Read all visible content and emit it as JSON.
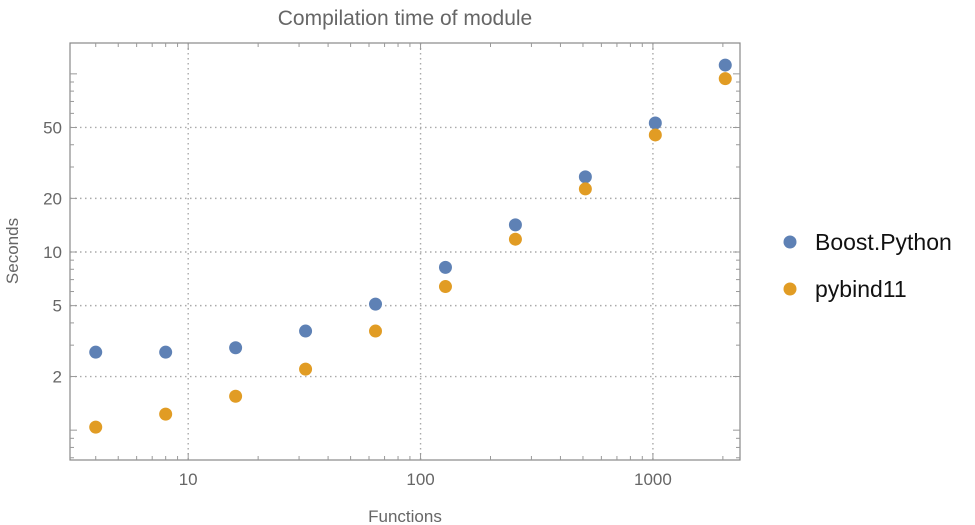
{
  "chart_data": {
    "type": "scatter",
    "title": "Compilation time of module",
    "xlabel": "Functions",
    "ylabel": "Seconds",
    "xscale": "log",
    "yscale": "log",
    "xlim": [
      3.1,
      2370
    ],
    "ylim": [
      0.68,
      149
    ],
    "x_ticks": [
      10,
      100,
      1000
    ],
    "y_ticks": [
      2,
      5,
      10,
      20,
      50
    ],
    "grid": true,
    "legend_position": "right",
    "x": [
      4,
      8,
      16,
      32,
      64,
      128,
      256,
      512,
      1024,
      2048
    ],
    "series": [
      {
        "name": "Boost.Python",
        "color": "#5e81b5",
        "values": [
          2.74,
          2.74,
          2.9,
          3.6,
          5.1,
          8.2,
          14.2,
          26.4,
          53,
          112
        ]
      },
      {
        "name": "pybind11",
        "color": "#e19c24",
        "values": [
          1.04,
          1.23,
          1.55,
          2.2,
          3.6,
          6.4,
          11.8,
          22.6,
          45.4,
          94
        ]
      }
    ]
  }
}
